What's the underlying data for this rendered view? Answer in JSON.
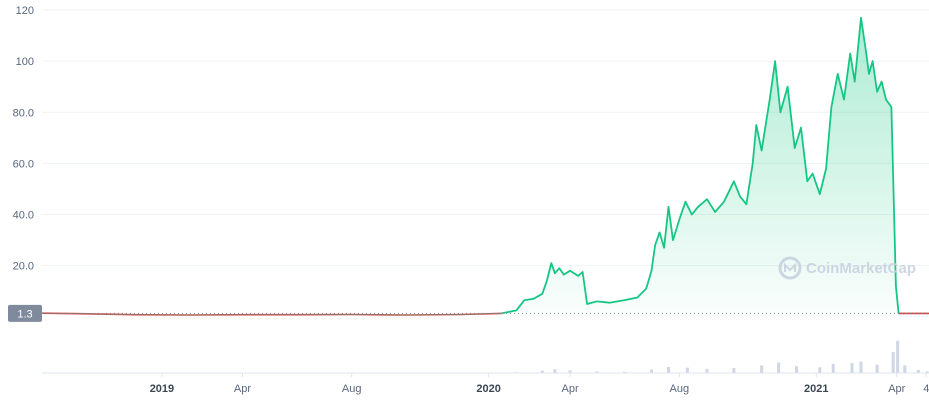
{
  "watermark": {
    "text": "CoinMarketCap",
    "icon": "coinmarketcap-logo-icon"
  },
  "colors": {
    "price_up": "#16c784",
    "price_down": "#ea3943",
    "fill_top": "#16c784",
    "volume": "#cfd6e4",
    "grid": "#eff2f5",
    "current_badge": "#808a9d"
  },
  "current_price": {
    "label": "1.3",
    "value": 1.3
  },
  "chart_data": {
    "type": "line",
    "title": "",
    "xlabel": "",
    "ylabel": "",
    "ylim": [
      -22,
      120
    ],
    "yticks": [
      {
        "label": "120",
        "value": 120
      },
      {
        "label": "100",
        "value": 100
      },
      {
        "label": "80.0",
        "value": 80
      },
      {
        "label": "60.0",
        "value": 60
      },
      {
        "label": "40.0",
        "value": 40
      },
      {
        "label": "20.0",
        "value": 20
      }
    ],
    "xlim": [
      "2018-08-20",
      "2021-05-07"
    ],
    "xticks": [
      {
        "label": "2019",
        "date": "2019-01-01",
        "bold": true
      },
      {
        "label": "Apr",
        "date": "2019-04-01",
        "bold": false
      },
      {
        "label": "Aug",
        "date": "2019-08-01",
        "bold": false
      },
      {
        "label": "2020",
        "date": "2020-01-01",
        "bold": true
      },
      {
        "label": "Apr",
        "date": "2020-04-01",
        "bold": false
      },
      {
        "label": "Aug",
        "date": "2020-08-01",
        "bold": false
      },
      {
        "label": "2021",
        "date": "2021-01-01",
        "bold": true
      },
      {
        "label": "Apr",
        "date": "2021-04-01",
        "bold": false
      },
      {
        "label": "4",
        "date": "2021-05-04",
        "bold": false
      }
    ],
    "series": [
      {
        "values": [
          [
            "2018-08-20",
            1.4
          ],
          [
            "2018-10-01",
            1.2
          ],
          [
            "2018-12-01",
            0.8
          ],
          [
            "2019-02-01",
            0.7
          ],
          [
            "2019-04-01",
            0.8
          ],
          [
            "2019-06-01",
            0.8
          ],
          [
            "2019-08-01",
            0.9
          ],
          [
            "2019-10-01",
            0.7
          ],
          [
            "2019-12-01",
            0.9
          ],
          [
            "2020-01-15",
            1.3
          ],
          [
            "2020-02-01",
            2.5
          ],
          [
            "2020-02-10",
            6.5
          ],
          [
            "2020-02-20",
            7.0
          ],
          [
            "2020-03-01",
            9.0
          ],
          [
            "2020-03-06",
            14.0
          ],
          [
            "2020-03-11",
            21.0
          ],
          [
            "2020-03-15",
            17.0
          ],
          [
            "2020-03-20",
            19.0
          ],
          [
            "2020-03-25",
            16.5
          ],
          [
            "2020-04-01",
            18.0
          ],
          [
            "2020-04-10",
            16.0
          ],
          [
            "2020-04-15",
            17.5
          ],
          [
            "2020-04-20",
            5.0
          ],
          [
            "2020-05-01",
            6.0
          ],
          [
            "2020-05-15",
            5.5
          ],
          [
            "2020-06-01",
            6.5
          ],
          [
            "2020-06-15",
            7.5
          ],
          [
            "2020-06-25",
            11.0
          ],
          [
            "2020-07-01",
            18.0
          ],
          [
            "2020-07-05",
            28.0
          ],
          [
            "2020-07-10",
            33.0
          ],
          [
            "2020-07-15",
            27.0
          ],
          [
            "2020-07-20",
            43.0
          ],
          [
            "2020-07-25",
            30.0
          ],
          [
            "2020-08-01",
            38.0
          ],
          [
            "2020-08-08",
            45.0
          ],
          [
            "2020-08-15",
            40.0
          ],
          [
            "2020-08-22",
            43.0
          ],
          [
            "2020-09-01",
            46.0
          ],
          [
            "2020-09-10",
            41.0
          ],
          [
            "2020-09-20",
            45.0
          ],
          [
            "2020-10-01",
            53.0
          ],
          [
            "2020-10-08",
            47.0
          ],
          [
            "2020-10-15",
            44.0
          ],
          [
            "2020-10-22",
            60.0
          ],
          [
            "2020-10-26",
            75.0
          ],
          [
            "2020-11-01",
            65.0
          ],
          [
            "2020-11-10",
            85.0
          ],
          [
            "2020-11-16",
            100.0
          ],
          [
            "2020-11-22",
            80.0
          ],
          [
            "2020-11-30",
            90.0
          ],
          [
            "2020-12-08",
            66.0
          ],
          [
            "2020-12-15",
            74.0
          ],
          [
            "2020-12-22",
            53.0
          ],
          [
            "2020-12-28",
            56.0
          ],
          [
            "2021-01-05",
            48.0
          ],
          [
            "2021-01-12",
            58.0
          ],
          [
            "2021-01-18",
            82.0
          ],
          [
            "2021-01-25",
            95.0
          ],
          [
            "2021-02-01",
            85.0
          ],
          [
            "2021-02-08",
            103.0
          ],
          [
            "2021-02-13",
            92.0
          ],
          [
            "2021-02-20",
            117.0
          ],
          [
            "2021-02-25",
            105.0
          ],
          [
            "2021-03-01",
            95.0
          ],
          [
            "2021-03-05",
            100.0
          ],
          [
            "2021-03-10",
            88.0
          ],
          [
            "2021-03-15",
            92.0
          ],
          [
            "2021-03-20",
            85.0
          ],
          [
            "2021-03-26",
            82.0
          ],
          [
            "2021-03-29",
            40.0
          ],
          [
            "2021-03-31",
            12.0
          ],
          [
            "2021-04-03",
            1.3
          ],
          [
            "2021-05-07",
            1.3
          ]
        ]
      }
    ],
    "volume": {
      "values": [
        [
          "2020-02-01",
          2
        ],
        [
          "2020-03-01",
          6
        ],
        [
          "2020-03-15",
          10
        ],
        [
          "2020-04-01",
          7
        ],
        [
          "2020-05-01",
          4
        ],
        [
          "2020-06-01",
          3
        ],
        [
          "2020-07-01",
          9
        ],
        [
          "2020-07-20",
          16
        ],
        [
          "2020-08-10",
          14
        ],
        [
          "2020-09-01",
          11
        ],
        [
          "2020-10-01",
          13
        ],
        [
          "2020-11-01",
          20
        ],
        [
          "2020-11-20",
          28
        ],
        [
          "2020-12-10",
          18
        ],
        [
          "2021-01-05",
          15
        ],
        [
          "2021-01-20",
          24
        ],
        [
          "2021-02-10",
          26
        ],
        [
          "2021-02-20",
          30
        ],
        [
          "2021-03-10",
          22
        ],
        [
          "2021-03-28",
          55
        ],
        [
          "2021-04-02",
          85
        ],
        [
          "2021-04-10",
          20
        ],
        [
          "2021-04-25",
          8
        ],
        [
          "2021-05-05",
          4
        ]
      ],
      "max": 100
    }
  }
}
